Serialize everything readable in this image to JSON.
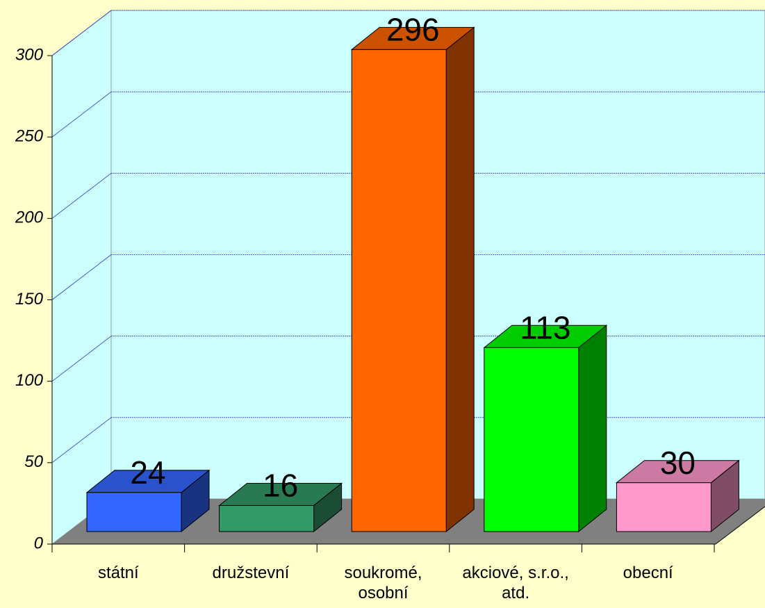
{
  "chart_data": {
    "type": "bar3d",
    "categories": [
      "státní",
      "družstevní",
      "soukromé, osobní",
      "akciové, s.r.o., atd.",
      "obecní"
    ],
    "values": [
      24,
      16,
      296,
      113,
      30
    ],
    "colors": [
      "#3366ff",
      "#339966",
      "#ff6600",
      "#00ff00",
      "#ff99cc"
    ],
    "ylim": [
      0,
      300
    ],
    "yticks": [
      0,
      50,
      100,
      150,
      200,
      250,
      300
    ],
    "grid": true
  }
}
